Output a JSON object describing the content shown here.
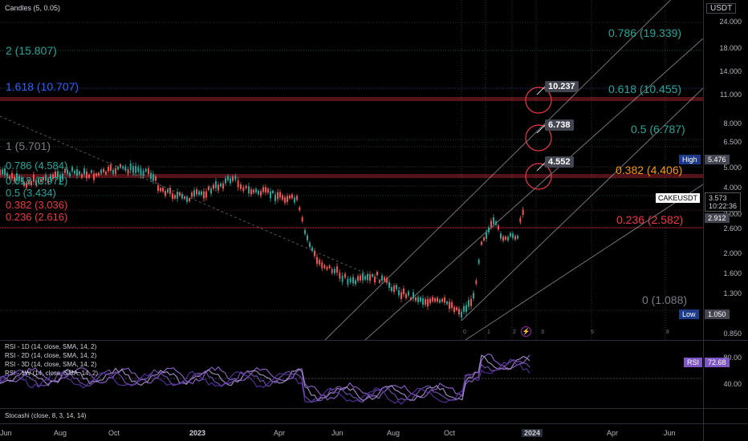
{
  "header": {
    "candles_label": "Candles (5, 0.05)",
    "currency": "USDT"
  },
  "price_axis": [
    "24.000",
    "18.000",
    "14.000",
    "11.000",
    "8.000",
    "6.500",
    "5.000",
    "4.000",
    "3.000",
    "2.600",
    "2.000",
    "1.600",
    "1.300",
    "1.050",
    "0.850"
  ],
  "fib_left": {
    "l2": "2 (15.807)",
    "l1618": "1.618 (10.707)",
    "l1": "1 (5.701)",
    "l786": "0.786 (4.584)",
    "l618": "0.618 (3.972)",
    "l5": "0.5 (3.434)",
    "l382": "0.382 (3.036)",
    "l236": "0.236 (2.616)"
  },
  "fib_right": {
    "r786": "0.786 (19.339)",
    "r618": "0.618 (10.455)",
    "r5": "0.5 (6.787)",
    "r382": "0.382 (4.406)",
    "r236": "0.236 (2.582)",
    "r0": "0 (1.088)"
  },
  "callouts": {
    "c1": "10.237",
    "c2": "6.738",
    "c3": "4.552"
  },
  "badges": {
    "high_label": "High",
    "high_value": "5.476",
    "symbol": "CAKEUSDT",
    "price": "3.573",
    "countdown": "10:22:36",
    "level": "2.912",
    "low_label": "Low",
    "low_value": "1.050"
  },
  "cycle_marks": [
    "0",
    "1",
    "2",
    "3",
    "5",
    "8"
  ],
  "rsi_pane": {
    "lines": [
      "RSI - 1D (14, close, SMA, 14, 2)",
      "RSI - 2D (14, close, SMA, 14, 2)",
      "RSI - 3D (14, close, SMA, 14, 2)",
      "RSI - 1W (14, close, SMA, 14, 2)"
    ],
    "axis": [
      "80.00",
      "40.00"
    ],
    "badge_label": "RSI",
    "badge_value": "72.68"
  },
  "stoch_pane": {
    "label": "Stocashi (close, 8, 3, 14, 14)"
  },
  "time_axis": [
    "Jun",
    "Aug",
    "Oct",
    "2023",
    "Apr",
    "Jun",
    "Aug",
    "Oct",
    "2024",
    "Apr",
    "Jun"
  ],
  "colors": {
    "up": "#26a69a",
    "down": "#ef5350",
    "purple": "#9c6ade",
    "fib_blue": "#2962ff",
    "fib_teal": "#26a69a",
    "fib_red": "#f23645",
    "fib_orange": "#ff9800"
  }
}
